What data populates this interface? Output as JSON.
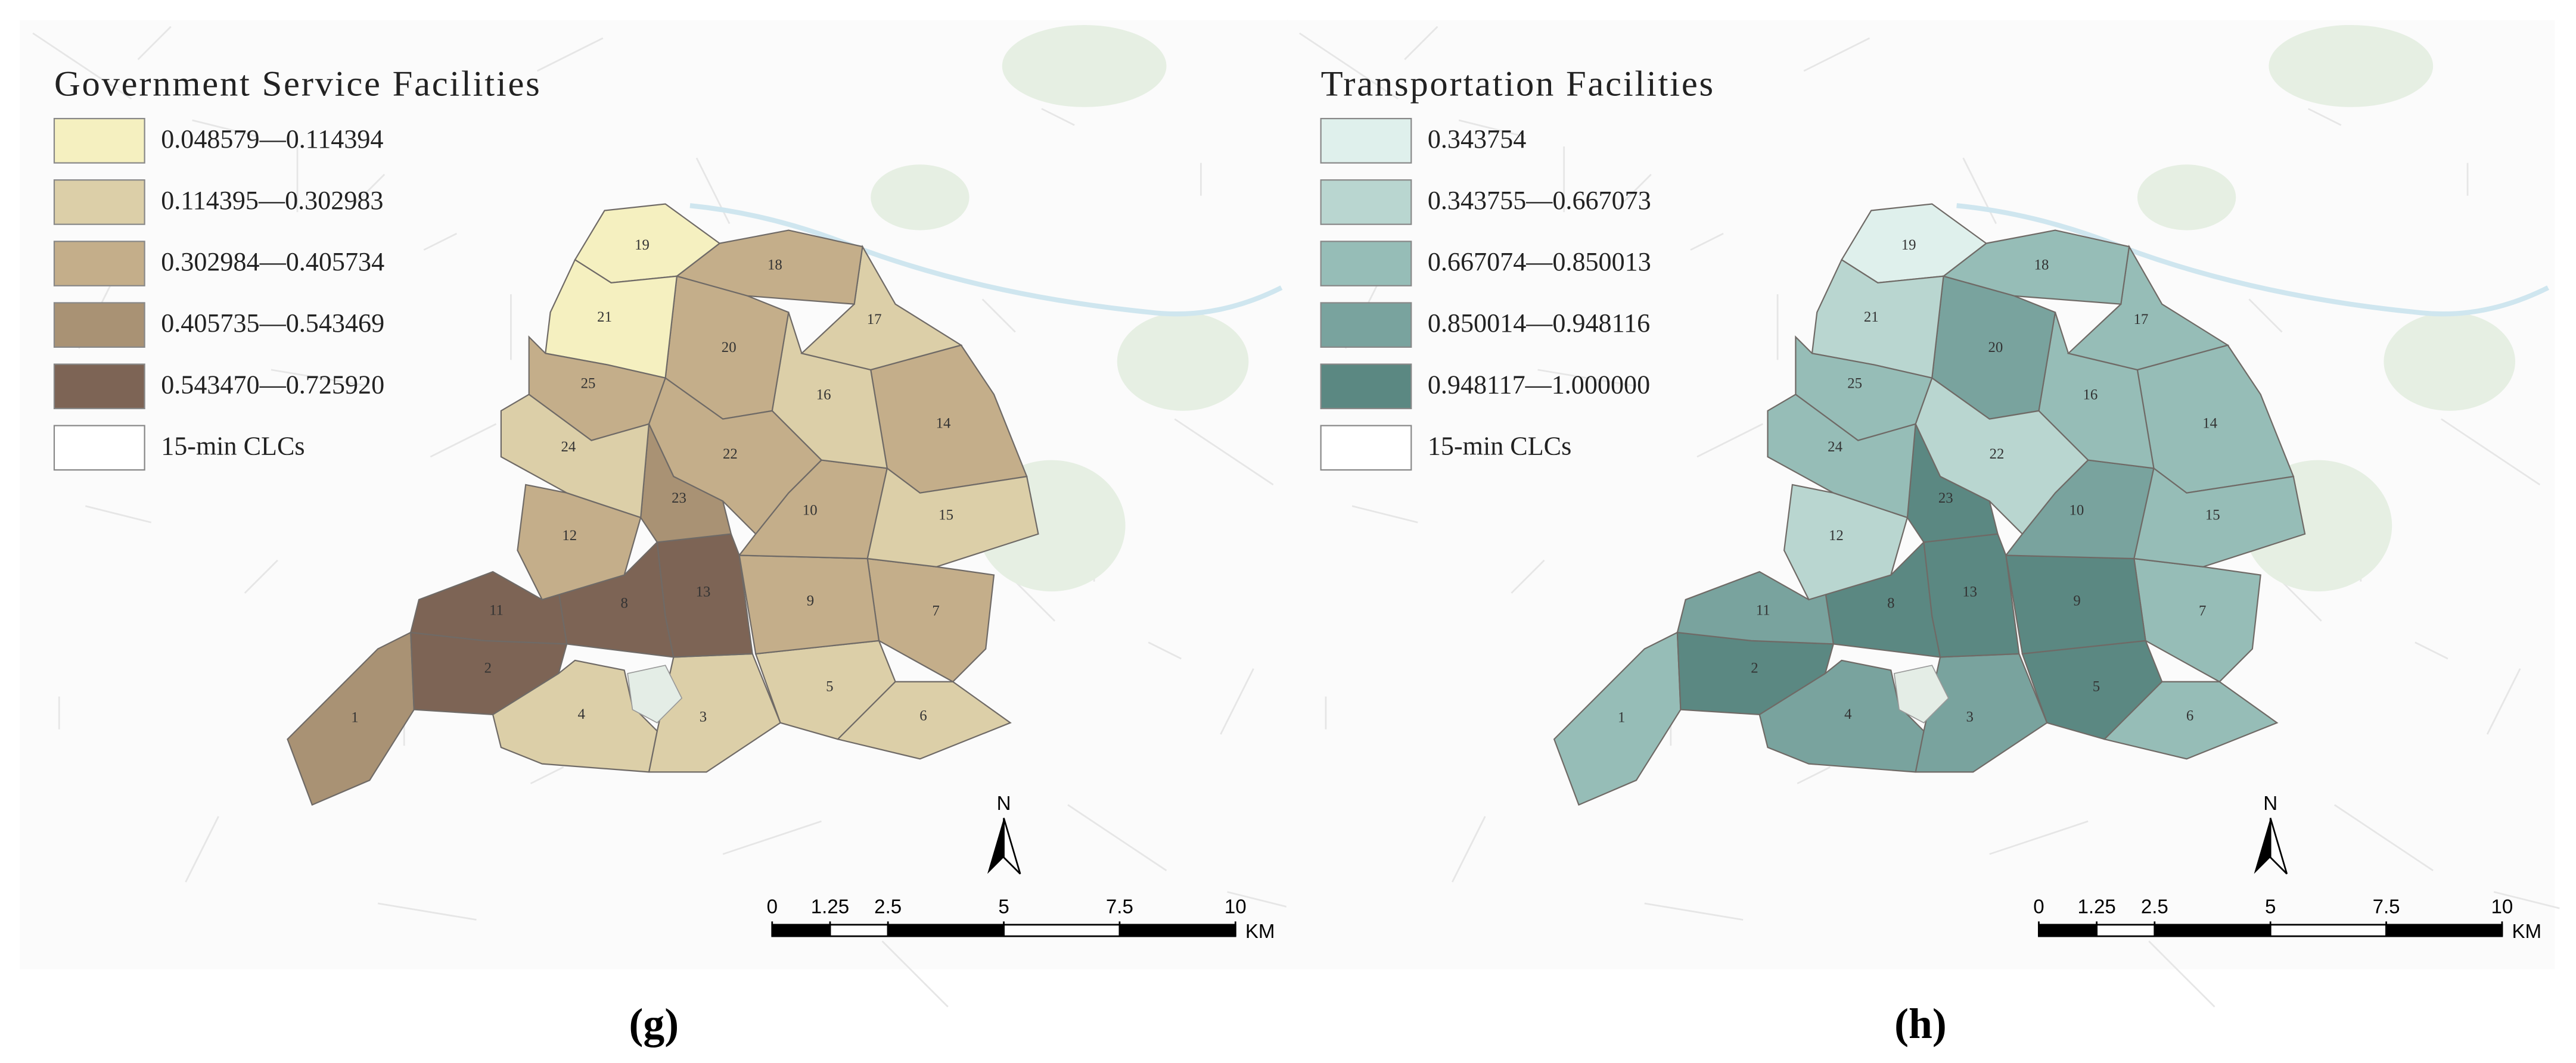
{
  "districts": [
    "1",
    "2",
    "3",
    "4",
    "5",
    "6",
    "7",
    "8",
    "9",
    "10",
    "11",
    "12",
    "13",
    "14",
    "15",
    "16",
    "17",
    "18",
    "19",
    "20",
    "21",
    "22",
    "23",
    "24",
    "25"
  ],
  "panels": [
    {
      "title": "Government Service Facilities",
      "legend": [
        {
          "label": "0.048579—0.114394",
          "color": "#f5f0c0"
        },
        {
          "label": "0.114395—0.302983",
          "color": "#dccfa8"
        },
        {
          "label": "0.302984—0.405734",
          "color": "#c4ae8a"
        },
        {
          "label": "0.405735—0.543469",
          "color": "#a99274"
        },
        {
          "label": "0.543470—0.725920",
          "color": "#7d6455"
        },
        {
          "label": "15-min CLCs",
          "color": "#ffffff"
        }
      ],
      "district_colors": [
        "#a99274",
        "#7d6455",
        "#dccfa8",
        "#dccfa8",
        "#dccfa8",
        "#dccfa8",
        "#c4ae8a",
        "#7d6455",
        "#c4ae8a",
        "#c4ae8a",
        "#7d6455",
        "#c4ae8a",
        "#7d6455",
        "#c4ae8a",
        "#dccfa8",
        "#dccfa8",
        "#dccfa8",
        "#c4ae8a",
        "#f5f0c0",
        "#c4ae8a",
        "#f5f0c0",
        "#c4ae8a",
        "#a99274",
        "#dccfa8",
        "#c4ae8a"
      ],
      "scale_bar": {
        "ticks": [
          0,
          1.25,
          2.5,
          5,
          7.5,
          10
        ],
        "unit": "KM"
      },
      "north": "N",
      "caption": "(g)"
    },
    {
      "title": "Transportation Facilities",
      "legend": [
        {
          "label": "0.343754",
          "color": "#dff0ec"
        },
        {
          "label": "0.343755—0.667073",
          "color": "#b9d6d0"
        },
        {
          "label": "0.667074—0.850013",
          "color": "#96bdb7"
        },
        {
          "label": "0.850014—0.948116",
          "color": "#79a39e"
        },
        {
          "label": "0.948117—1.000000",
          "color": "#5b8882"
        },
        {
          "label": "15-min CLCs",
          "color": "#ffffff"
        }
      ],
      "district_colors": [
        "#96bdb7",
        "#5b8882",
        "#79a39e",
        "#79a39e",
        "#5b8882",
        "#96bdb7",
        "#96bdb7",
        "#5b8882",
        "#5b8882",
        "#79a39e",
        "#79a39e",
        "#b9d6d0",
        "#5b8882",
        "#96bdb7",
        "#96bdb7",
        "#96bdb7",
        "#96bdb7",
        "#96bdb7",
        "#dff0ec",
        "#79a39e",
        "#b9d6d0",
        "#b9d6d0",
        "#5b8882",
        "#96bdb7",
        "#96bdb7"
      ],
      "scale_bar": {
        "ticks": [
          0,
          1.25,
          2.5,
          5,
          7.5,
          10
        ],
        "unit": "KM"
      },
      "north": "N",
      "caption": "(h)"
    }
  ]
}
